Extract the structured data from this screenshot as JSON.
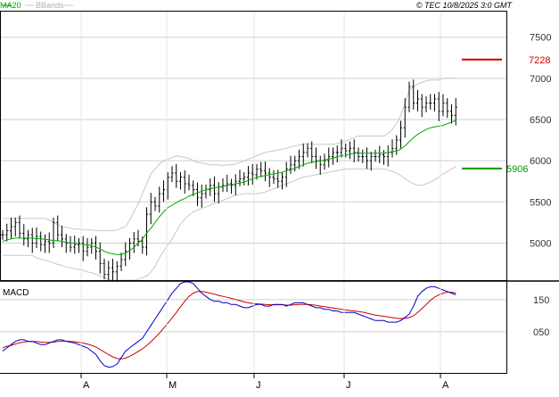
{
  "header": {
    "legend_ma": "MA20",
    "legend_bbands": "BBands",
    "copyright": "© TEC 10/8/2025 3:0 GMT"
  },
  "colors": {
    "price_bar": "#000000",
    "ma20": "#00aa00",
    "bbands": "#c8c8c8",
    "resistance": "#cc0000",
    "support": "#009900",
    "macd": "#0000cc",
    "signal": "#cc0000",
    "gridline": "#cfcfcf",
    "frame": "#000000"
  },
  "chart_data": [
    {
      "type": "ohlc",
      "panel": "price",
      "y_ticks": [
        "5000",
        "5500",
        "6000",
        "6500",
        "7000",
        "7500"
      ],
      "y_tick_values": [
        5000,
        5500,
        6000,
        6500,
        7000,
        7500
      ],
      "ylim": [
        4550,
        7800
      ],
      "grid": true,
      "levels": {
        "resistance": {
          "value": 7228,
          "label": "7228"
        },
        "support": {
          "value": 5906,
          "label": "5906"
        }
      },
      "x_tick_labels": [
        "A",
        "M",
        "J",
        "J",
        "A"
      ],
      "series": [
        {
          "name": "Price",
          "close": [
            5100,
            5150,
            5200,
            5250,
            5120,
            5050,
            5100,
            5000,
            5080,
            4980,
            5020,
            5000,
            5250,
            5100,
            5050,
            5000,
            4950,
            4980,
            5000,
            4900,
            4950,
            5000,
            4900,
            4750,
            4620,
            4700,
            4650,
            4720,
            4800,
            4900,
            5000,
            5050,
            5020,
            4950,
            5350,
            5500,
            5450,
            5600,
            5650,
            5800,
            5850,
            5750,
            5800,
            5720,
            5700,
            5650,
            5550,
            5600,
            5650,
            5700,
            5600,
            5680,
            5700,
            5720,
            5700,
            5750,
            5780,
            5800,
            5850,
            5830,
            5900,
            5880,
            5850,
            5800,
            5780,
            5750,
            5800,
            5900,
            5950,
            6000,
            6050,
            6100,
            6150,
            6050,
            6000,
            5950,
            6000,
            6050,
            6100,
            6100,
            6150,
            6120,
            6150,
            6100,
            6050,
            6050,
            6000,
            6050,
            6050,
            6070,
            6050,
            6100,
            6150,
            6250,
            6400,
            6650,
            6900,
            6700,
            6750,
            6650,
            6700,
            6700,
            6750,
            6600,
            6700,
            6600,
            6550,
            6650
          ]
        },
        {
          "name": "MA20",
          "values": [
            5020,
            5040,
            5050,
            5060,
            5060,
            5060,
            5060,
            5060,
            5055,
            5050,
            5045,
            5040,
            5030,
            5030,
            5020,
            5010,
            5000,
            5000,
            4990,
            4980,
            4980,
            4970,
            4950,
            4930,
            4900,
            4880,
            4870,
            4860,
            4860,
            4880,
            4910,
            4950,
            5000,
            5050,
            5120,
            5180,
            5250,
            5320,
            5380,
            5430,
            5460,
            5490,
            5520,
            5540,
            5570,
            5590,
            5610,
            5630,
            5650,
            5660,
            5670,
            5680,
            5690,
            5700,
            5710,
            5720,
            5730,
            5740,
            5760,
            5780,
            5800,
            5810,
            5820,
            5830,
            5840,
            5850,
            5860,
            5880,
            5890,
            5910,
            5930,
            5950,
            5970,
            5980,
            5990,
            6000,
            6010,
            6020,
            6030,
            6050,
            6060,
            6070,
            6080,
            6090,
            6090,
            6090,
            6090,
            6090,
            6090,
            6090,
            6090,
            6100,
            6110,
            6120,
            6140,
            6180,
            6230,
            6280,
            6320,
            6350,
            6380,
            6400,
            6410,
            6420,
            6430,
            6450,
            6470,
            6490
          ]
        },
        {
          "name": "BBands upper",
          "values": [
            5300,
            5300,
            5300,
            5300,
            5300,
            5300,
            5300,
            5300,
            5300,
            5300,
            5300,
            5280,
            5250,
            5220,
            5200,
            5190,
            5180,
            5170,
            5170,
            5160,
            5160,
            5160,
            5150,
            5150,
            5150,
            5150,
            5150,
            5160,
            5180,
            5200,
            5280,
            5380,
            5480,
            5600,
            5720,
            5840,
            5900,
            5960,
            6000,
            6020,
            6040,
            6060,
            6050,
            6040,
            6030,
            6000,
            5980,
            5970,
            5960,
            5950,
            5950,
            5950,
            5940,
            5950,
            5950,
            5960,
            5980,
            6000,
            6020,
            6040,
            6060,
            6080,
            6100,
            6110,
            6120,
            6130,
            6140,
            6150,
            6170,
            6180,
            6190,
            6200,
            6210,
            6200,
            6200,
            6200,
            6200,
            6200,
            6200,
            6210,
            6220,
            6240,
            6260,
            6280,
            6300,
            6300,
            6300,
            6300,
            6300,
            6300,
            6300,
            6330,
            6380,
            6450,
            6550,
            6700,
            6850,
            6900,
            6930,
            6950,
            6970,
            6980,
            6980,
            6980,
            7000,
            7000,
            7000,
            7000
          ]
        },
        {
          "name": "BBands lower",
          "values": [
            4850,
            4850,
            4850,
            4850,
            4850,
            4850,
            4850,
            4850,
            4820,
            4800,
            4790,
            4780,
            4760,
            4740,
            4730,
            4710,
            4700,
            4690,
            4680,
            4670,
            4650,
            4640,
            4620,
            4600,
            4580,
            4560,
            4550,
            4550,
            4550,
            4550,
            4550,
            4550,
            4560,
            4580,
            4600,
            4650,
            4720,
            4820,
            4900,
            4980,
            5050,
            5140,
            5230,
            5290,
            5340,
            5380,
            5400,
            5420,
            5440,
            5460,
            5480,
            5500,
            5520,
            5540,
            5560,
            5580,
            5590,
            5600,
            5600,
            5600,
            5600,
            5610,
            5620,
            5640,
            5660,
            5680,
            5700,
            5720,
            5740,
            5760,
            5780,
            5800,
            5810,
            5820,
            5830,
            5840,
            5850,
            5860,
            5870,
            5880,
            5890,
            5900,
            5900,
            5900,
            5900,
            5900,
            5900,
            5900,
            5900,
            5900,
            5900,
            5890,
            5870,
            5850,
            5820,
            5780,
            5750,
            5720,
            5700,
            5700,
            5720,
            5740,
            5770,
            5800,
            5840,
            5870,
            5900,
            5930
          ]
        }
      ]
    },
    {
      "type": "line",
      "panel": "macd",
      "title": "MACD",
      "y_ticks": [
        "150",
        "050"
      ],
      "y_tick_values": [
        150,
        50
      ],
      "ylim": [
        -75,
        205
      ],
      "grid": true,
      "x_tick_labels": [
        "A",
        "M",
        "J",
        "J",
        "A"
      ],
      "series": [
        {
          "name": "MACD",
          "values": [
            -10,
            0,
            10,
            20,
            25,
            25,
            20,
            20,
            15,
            10,
            10,
            15,
            20,
            25,
            25,
            20,
            18,
            15,
            10,
            5,
            0,
            -10,
            -20,
            -40,
            -55,
            -60,
            -58,
            -50,
            -30,
            -10,
            0,
            10,
            20,
            30,
            50,
            70,
            90,
            110,
            130,
            150,
            170,
            185,
            200,
            205,
            205,
            200,
            185,
            170,
            160,
            150,
            145,
            145,
            140,
            140,
            135,
            135,
            130,
            125,
            125,
            130,
            135,
            135,
            130,
            130,
            135,
            135,
            135,
            130,
            135,
            140,
            140,
            140,
            135,
            130,
            125,
            125,
            120,
            120,
            115,
            115,
            110,
            110,
            110,
            110,
            105,
            100,
            95,
            90,
            85,
            85,
            85,
            80,
            80,
            80,
            85,
            95,
            105,
            130,
            160,
            175,
            185,
            190,
            190,
            185,
            180,
            175,
            170,
            165
          ]
        },
        {
          "name": "Signal",
          "values": [
            0,
            5,
            8,
            12,
            16,
            18,
            20,
            20,
            20,
            18,
            17,
            17,
            18,
            20,
            21,
            21,
            20,
            19,
            17,
            15,
            12,
            8,
            3,
            -5,
            -13,
            -21,
            -28,
            -33,
            -34,
            -32,
            -26,
            -19,
            -11,
            -3,
            7,
            19,
            32,
            46,
            61,
            77,
            93,
            110,
            128,
            145,
            160,
            170,
            175,
            175,
            173,
            170,
            167,
            163,
            160,
            157,
            154,
            150,
            147,
            143,
            140,
            138,
            137,
            136,
            135,
            134,
            134,
            134,
            134,
            133,
            133,
            134,
            135,
            135,
            135,
            134,
            132,
            130,
            128,
            126,
            124,
            122,
            120,
            118,
            116,
            115,
            113,
            111,
            108,
            105,
            102,
            100,
            98,
            96,
            94,
            92,
            91,
            92,
            94,
            100,
            110,
            122,
            135,
            148,
            158,
            165,
            170,
            173,
            173,
            170
          ]
        }
      ]
    }
  ]
}
